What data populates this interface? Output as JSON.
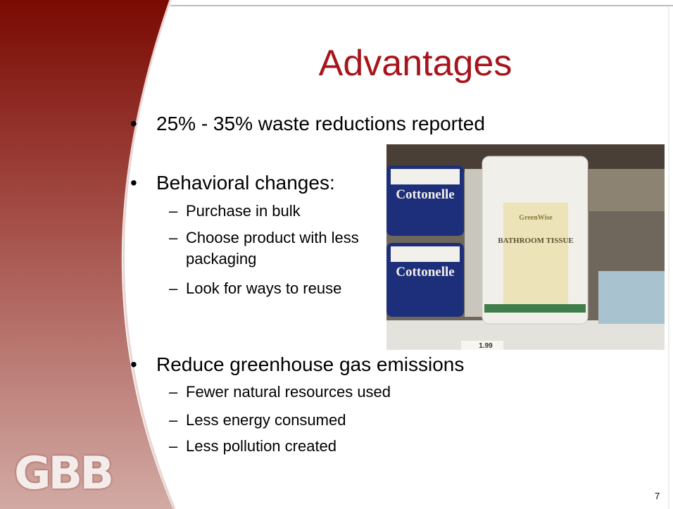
{
  "slide": {
    "title": "Advantages",
    "bullets": [
      {
        "text": "25% - 35% waste reductions reported"
      },
      {
        "text": "Behavioral changes:",
        "sub": [
          "Purchase in bulk",
          "Choose product with less packaging",
          "Look for ways to reuse"
        ]
      },
      {
        "text": "Reduce greenhouse gas emissions",
        "sub": [
          "Fewer natural resources used",
          "Less energy consumed",
          "Less pollution created"
        ]
      }
    ],
    "photo": {
      "labels": [
        "Cottonelle",
        "Cottonelle",
        "GreenWise",
        "BATHROOM TISSUE",
        "1.99"
      ]
    },
    "logo": "GBB",
    "page_number": "7"
  }
}
